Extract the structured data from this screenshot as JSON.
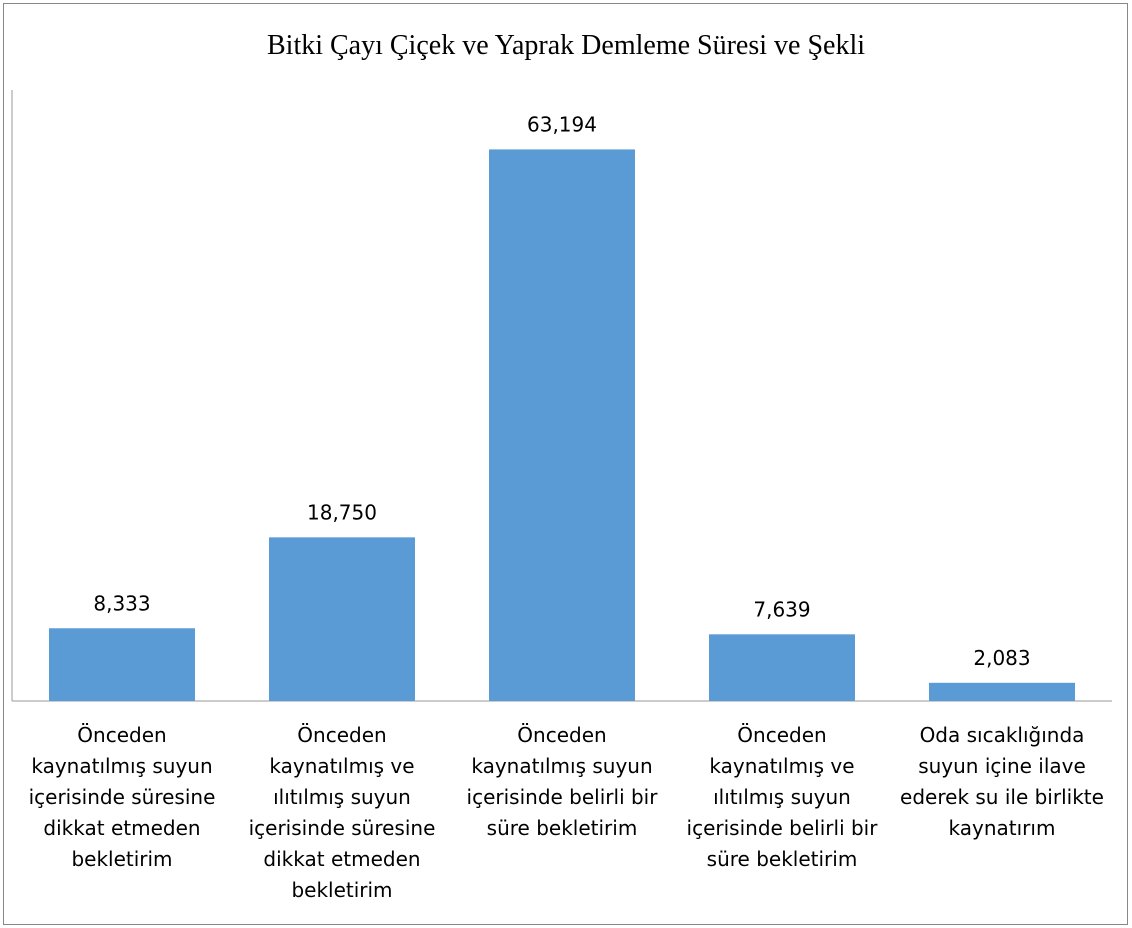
{
  "chart_data": {
    "type": "bar",
    "title": "Bitki Çayı Çiçek ve Yaprak Demleme Süresi ve Şekli",
    "categories": [
      "Önceden kaynatılmış suyun içerisinde süresine dikkat etmeden bekletirim",
      "Önceden kaynatılmış ve ılıtılmış suyun içerisinde süresine dikkat etmeden bekletirim",
      "Önceden kaynatılmış suyun içerisinde belirli bir süre bekletirim",
      "Önceden kaynatılmış ve ılıtılmış suyun içerisinde belirli bir süre bekletirim",
      "Oda sıcaklığında suyun içine ilave ederek su ile birlikte kaynatırım"
    ],
    "values": [
      8.333,
      18.75,
      63.194,
      7.639,
      2.083
    ],
    "value_labels": [
      "8,333",
      "18,750",
      "63,194",
      "7,639",
      "2,083"
    ],
    "color": "#5b9bd5",
    "ylim": [
      0,
      70
    ]
  }
}
